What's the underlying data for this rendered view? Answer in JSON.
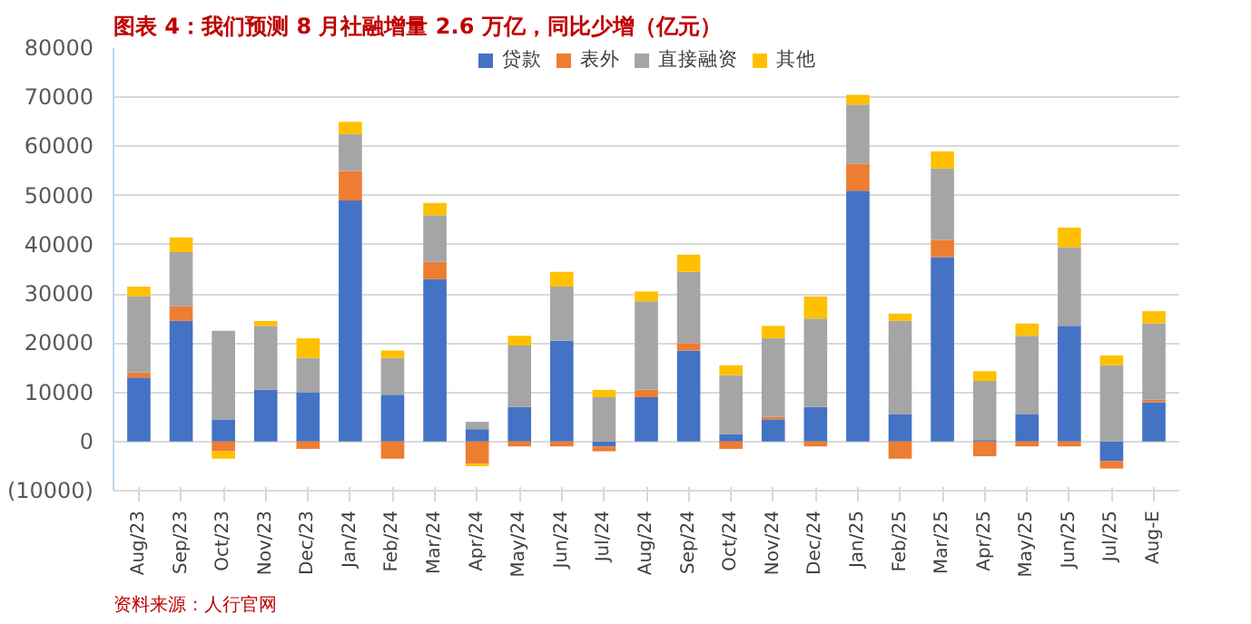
{
  "chart_data": {
    "type": "bar",
    "stacked": true,
    "title": "图表 4：我们预测 8 月社融增量 2.6 万亿，同比少增（亿元）",
    "annotations": [
      "资料来源：人行官网"
    ],
    "categories": [
      "Aug/23",
      "Sep/23",
      "Oct/23",
      "Nov/23",
      "Dec/23",
      "Jan/24",
      "Feb/24",
      "Mar/24",
      "Apr/24",
      "May/24",
      "Jun/24",
      "Jul/24",
      "Aug/24",
      "Sep/24",
      "Oct/24",
      "Nov/24",
      "Dec/24",
      "Jan/25",
      "Feb/25",
      "Mar/25",
      "Apr/25",
      "May/25",
      "Jun/25",
      "Jul/25",
      "Aug-E"
    ],
    "series": [
      {
        "name": "贷款",
        "color": "#4472c4",
        "values": [
          13000,
          24500,
          4500,
          10500,
          10000,
          49000,
          9500,
          33000,
          2500,
          7000,
          20500,
          -1000,
          9000,
          18500,
          1500,
          4500,
          7000,
          51000,
          5500,
          37500,
          300,
          5500,
          23500,
          -4000,
          8000
        ]
      },
      {
        "name": "表外",
        "color": "#ed7d31",
        "values": [
          1000,
          3000,
          -2000,
          0,
          -1500,
          6000,
          -3500,
          3500,
          -4500,
          -1000,
          -1000,
          -1000,
          1500,
          1500,
          -1500,
          500,
          -1000,
          5500,
          -3500,
          3500,
          -3000,
          -1000,
          -1000,
          -1500,
          500
        ]
      },
      {
        "name": "直接融资",
        "color": "#a5a5a5",
        "values": [
          15500,
          11000,
          18000,
          13000,
          7000,
          7500,
          7500,
          9500,
          1500,
          12500,
          11000,
          9000,
          18000,
          14500,
          12000,
          16000,
          18000,
          12000,
          19000,
          14500,
          12000,
          16000,
          16000,
          15500,
          15500
        ]
      },
      {
        "name": "其他",
        "color": "#ffc000",
        "values": [
          2000,
          3000,
          -1500,
          1000,
          4000,
          2500,
          1500,
          2500,
          -500,
          2000,
          3000,
          1500,
          2000,
          3500,
          2000,
          2500,
          4500,
          2000,
          1500,
          3500,
          2000,
          2500,
          4000,
          2000,
          2500
        ]
      }
    ],
    "ylim": [
      -10000,
      80000
    ],
    "yticks": [
      {
        "value": -10000,
        "label": "(10000)"
      },
      0,
      10000,
      20000,
      30000,
      40000,
      50000,
      60000,
      70000,
      80000
    ],
    "grid": "y",
    "legend": "top"
  }
}
